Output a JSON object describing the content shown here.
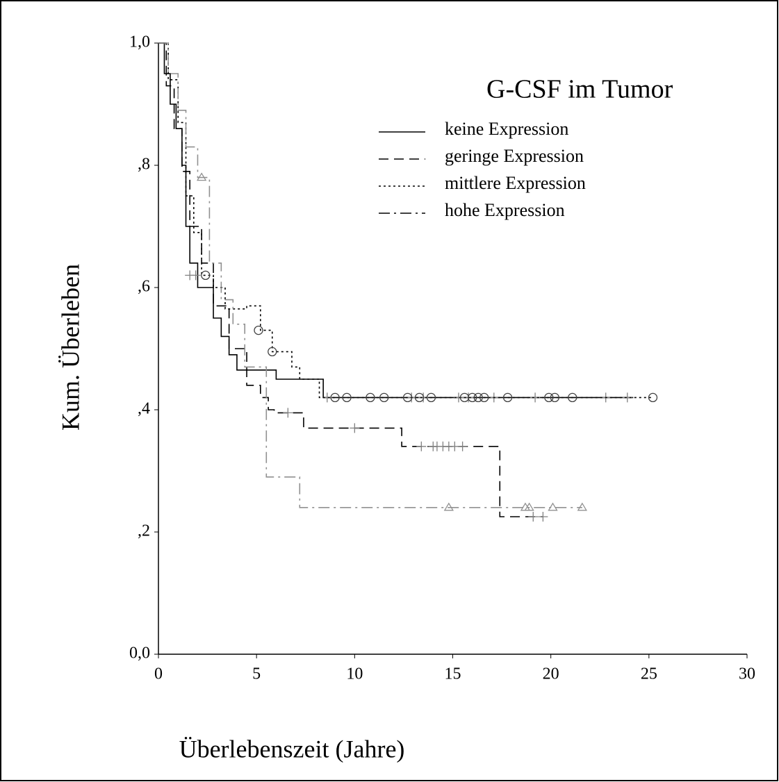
{
  "chart_data": {
    "type": "line",
    "step": "post",
    "legend_title": "G-CSF im Tumor",
    "xlabel": "Überlebenszeit (Jahre)",
    "ylabel": "Kum. Überleben",
    "xlim": [
      0,
      30
    ],
    "xticks": [
      0,
      5,
      10,
      15,
      20,
      25,
      30
    ],
    "ylim": [
      0,
      1
    ],
    "yticks": [
      {
        "value": 0,
        "label": "0,0"
      },
      {
        "value": 0.2,
        "label": ",2"
      },
      {
        "value": 0.4,
        "label": ",4"
      },
      {
        "value": 0.6,
        "label": ",6"
      },
      {
        "value": 0.8,
        "label": ",8"
      },
      {
        "value": 1,
        "label": "1,0"
      }
    ],
    "series": [
      {
        "name": "keine Expression",
        "color": "#000000",
        "dash": "solid",
        "marker": "plus",
        "marker_color": "#808080",
        "x": [
          0,
          0.3,
          0.6,
          0.9,
          1.2,
          1.4,
          1.6,
          2.0,
          2.8,
          3.2,
          3.6,
          4.0,
          6.0,
          8.4,
          24.2
        ],
        "values": [
          1,
          0.95,
          0.9,
          0.86,
          0.8,
          0.7,
          0.64,
          0.6,
          0.55,
          0.52,
          0.49,
          0.465,
          0.45,
          0.42,
          0.42
        ],
        "censored": {
          "x": [
            1.6,
            1.9,
            8.6,
            12.9,
            13.5,
            15.3,
            15.8,
            17.1,
            19.2,
            22.8,
            23.9
          ],
          "values": [
            0.62,
            0.62,
            0.42,
            0.42,
            0.42,
            0.42,
            0.42,
            0.42,
            0.42,
            0.42,
            0.42
          ]
        }
      },
      {
        "name": "geringe Expression",
        "color": "#000000",
        "dash": "dashed",
        "marker": "plus",
        "marker_color": "#808080",
        "x": [
          0,
          0.4,
          0.8,
          1.2,
          1.6,
          2.2,
          2.8,
          3.6,
          4.5,
          5.2,
          5.6,
          5.9,
          7.4,
          12.4,
          17.4,
          19.6
        ],
        "values": [
          1,
          0.93,
          0.86,
          0.79,
          0.7,
          0.64,
          0.57,
          0.5,
          0.44,
          0.42,
          0.4,
          0.395,
          0.37,
          0.34,
          0.225,
          0.225
        ],
        "censored": {
          "x": [
            6.6,
            10,
            13.4,
            14,
            14.2,
            14.5,
            14.8,
            15.1,
            15.5,
            19.1,
            19.6
          ],
          "values": [
            0.395,
            0.37,
            0.34,
            0.34,
            0.34,
            0.34,
            0.34,
            0.34,
            0.34,
            0.225,
            0.225
          ]
        }
      },
      {
        "name": "mittlere Expression",
        "color": "#000000",
        "dash": "dotted",
        "marker": "circle",
        "marker_color": "#404040",
        "x": [
          0,
          0.5,
          1.0,
          1.4,
          1.8,
          2.2,
          2.8,
          3.4,
          4.5,
          5.2,
          5.8,
          6.8,
          7.2,
          8.2,
          25.2
        ],
        "values": [
          1,
          0.94,
          0.87,
          0.75,
          0.69,
          0.62,
          0.6,
          0.565,
          0.57,
          0.53,
          0.495,
          0.47,
          0.45,
          0.42,
          0.42
        ],
        "censored": {
          "x": [
            2.4,
            5.1,
            5.8,
            9.0,
            9.6,
            10.8,
            11.5,
            12.7,
            13.3,
            13.9,
            15.6,
            16.0,
            16.3,
            16.6,
            17.8,
            19.9,
            20.2,
            21.1,
            25.2
          ],
          "values": [
            0.62,
            0.53,
            0.495,
            0.42,
            0.42,
            0.42,
            0.42,
            0.42,
            0.42,
            0.42,
            0.42,
            0.42,
            0.42,
            0.42,
            0.42,
            0.42,
            0.42,
            0.42,
            0.42
          ]
        }
      },
      {
        "name": "hohe Expression",
        "color": "#909090",
        "dash": "dashdot",
        "marker": "triangle",
        "marker_color": "#909090",
        "x": [
          0,
          0.5,
          1.0,
          1.4,
          2.0,
          2.6,
          3.2,
          3.8,
          4.4,
          5.5,
          7.2,
          21.6
        ],
        "values": [
          1,
          0.95,
          0.89,
          0.83,
          0.78,
          0.64,
          0.58,
          0.54,
          0.47,
          0.29,
          0.24,
          0.24
        ],
        "censored": {
          "x": [
            2.2,
            14.8,
            18.7,
            18.9,
            20.1,
            21.6
          ],
          "values": [
            0.78,
            0.24,
            0.24,
            0.24,
            0.24,
            0.24
          ]
        }
      }
    ]
  }
}
